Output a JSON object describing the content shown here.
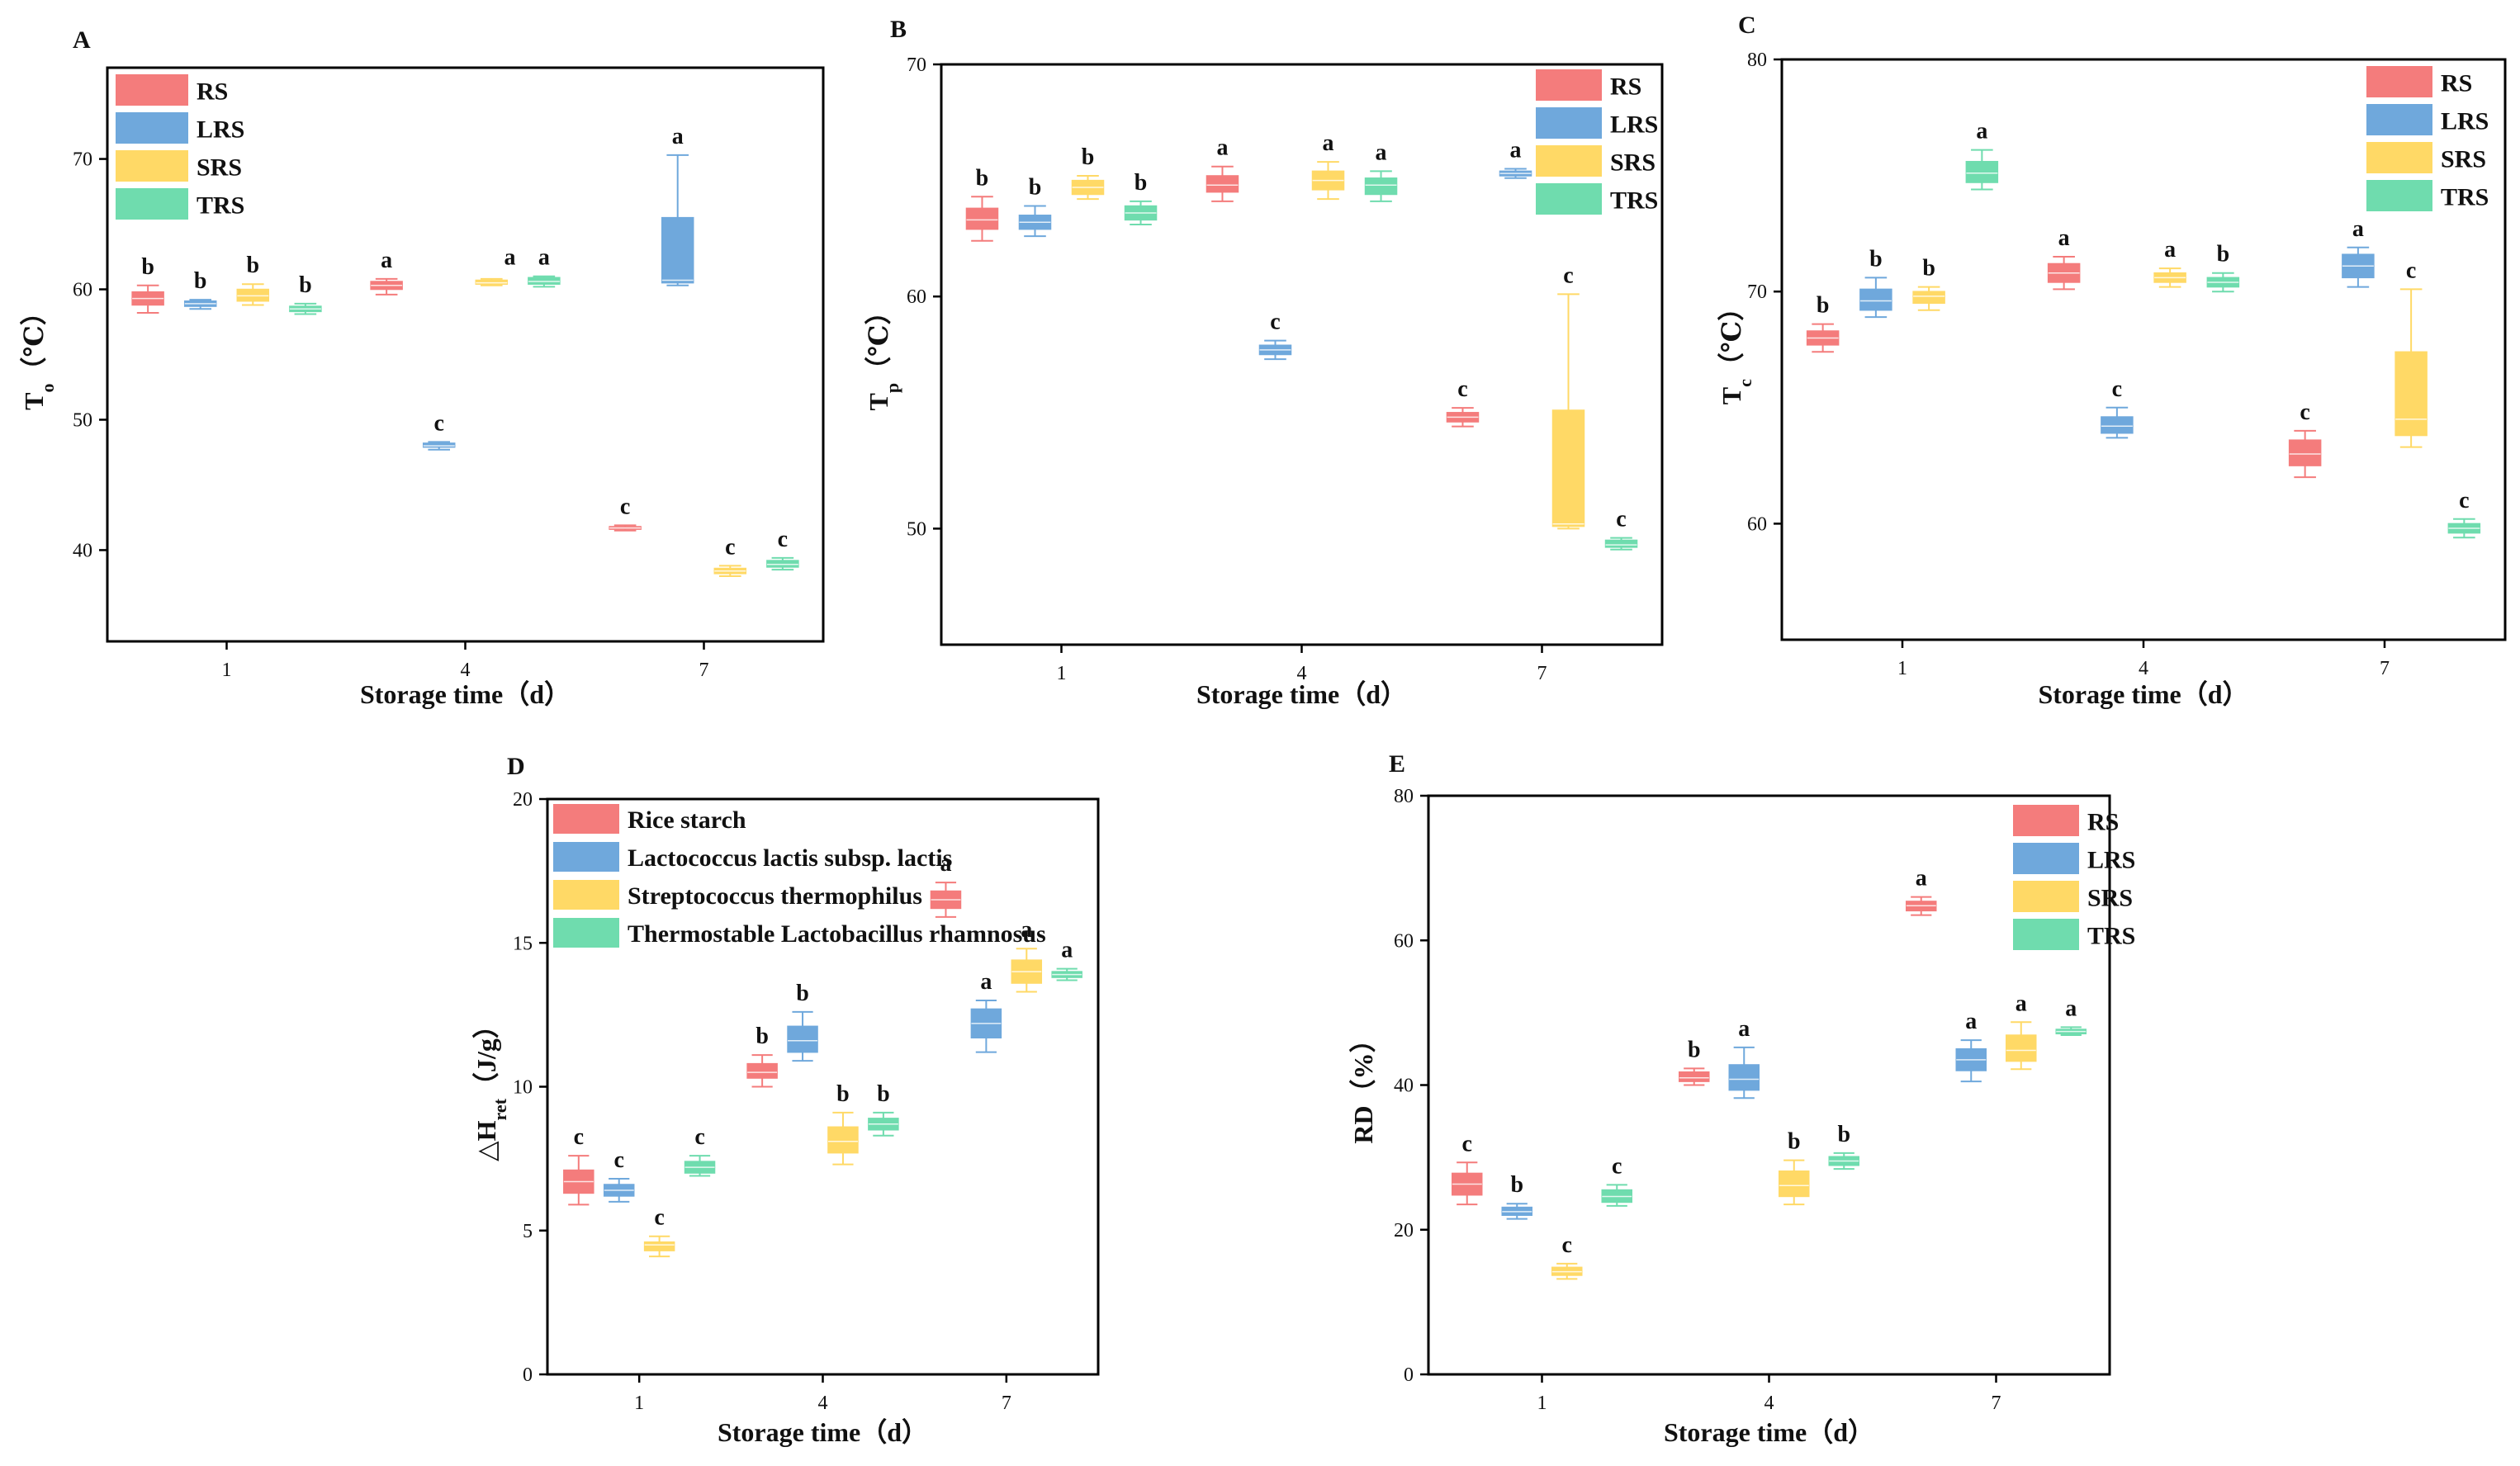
{
  "colors": {
    "RS": "#f47c7c",
    "LRS": "#6fa8dc",
    "SRS": "#ffd966",
    "TRS": "#6fdcae"
  },
  "chart_data": [
    {
      "type": "box",
      "panel": "A",
      "title": "",
      "xlabel": "Storage time（d）",
      "ylabel_main": "T",
      "ylabel_sub": "o",
      "ylabel_unit": "（℃）",
      "ylim": [
        33,
        77
      ],
      "yticks": [
        "40",
        "50",
        "60",
        "70"
      ],
      "ytick_values": [
        40,
        50,
        60,
        70
      ],
      "categories": [
        "1",
        "4",
        "7"
      ],
      "legend_entries": [
        {
          "key": "RS",
          "label": "RS"
        },
        {
          "key": "LRS",
          "label": "LRS"
        },
        {
          "key": "SRS",
          "label": "SRS"
        },
        {
          "key": "TRS",
          "label": "TRS"
        }
      ],
      "series": [
        {
          "name": "RS",
          "color_key": "RS",
          "boxes": [
            {
              "min": 58.2,
              "q1": 58.8,
              "median": 59.3,
              "q3": 59.8,
              "max": 60.3,
              "letter": "b"
            },
            {
              "min": 59.6,
              "q1": 60.0,
              "median": 60.3,
              "q3": 60.6,
              "max": 60.8,
              "letter": "a"
            },
            {
              "min": 41.5,
              "q1": 41.6,
              "median": 41.7,
              "q3": 41.8,
              "max": 41.9,
              "letter": "c"
            }
          ]
        },
        {
          "name": "LRS",
          "color_key": "LRS",
          "boxes": [
            {
              "min": 58.5,
              "q1": 58.7,
              "median": 58.9,
              "q3": 59.1,
              "max": 59.2,
              "letter": "b"
            },
            {
              "min": 47.7,
              "q1": 47.9,
              "median": 48.0,
              "q3": 48.2,
              "max": 48.3,
              "letter": "c"
            },
            {
              "min": 60.3,
              "q1": 60.5,
              "median": 60.7,
              "q3": 65.5,
              "max": 70.3,
              "letter": "a"
            }
          ]
        },
        {
          "name": "SRS",
          "color_key": "SRS",
          "boxes": [
            {
              "min": 58.8,
              "q1": 59.1,
              "median": 59.5,
              "q3": 60.0,
              "max": 60.4,
              "letter": "b"
            },
            {
              "min": 60.3,
              "q1": 60.4,
              "median": 60.5,
              "q3": 60.7,
              "max": 60.8,
              "letter": null
            },
            {
              "min": 38.0,
              "q1": 38.2,
              "median": 38.4,
              "q3": 38.6,
              "max": 38.8,
              "letter": "c"
            }
          ]
        },
        {
          "name": "TRS",
          "color_key": "TRS",
          "boxes": [
            {
              "min": 58.1,
              "q1": 58.3,
              "median": 58.5,
              "q3": 58.7,
              "max": 58.9,
              "letter": "b"
            },
            {
              "min": 60.2,
              "q1": 60.4,
              "median": 60.6,
              "q3": 60.9,
              "max": 61.0,
              "letter": "a"
            },
            {
              "min": 38.5,
              "q1": 38.7,
              "median": 38.9,
              "q3": 39.2,
              "max": 39.4,
              "letter": "c"
            }
          ]
        }
      ],
      "extra_labels": [
        {
          "category": 1,
          "series": "LRS",
          "offset": 0.33,
          "y": 61.0,
          "text": "a"
        }
      ]
    },
    {
      "type": "box",
      "panel": "B",
      "title": "",
      "xlabel": "Storage time（d）",
      "ylabel_main": "T",
      "ylabel_sub": "p",
      "ylabel_unit": "（℃）",
      "ylim": [
        45,
        70
      ],
      "yticks": [
        "50",
        "60",
        "70"
      ],
      "ytick_values": [
        50,
        60,
        70
      ],
      "categories": [
        "1",
        "4",
        "7"
      ],
      "legend_entries": [
        {
          "key": "RS",
          "label": "RS"
        },
        {
          "key": "LRS",
          "label": "LRS"
        },
        {
          "key": "SRS",
          "label": "SRS"
        },
        {
          "key": "TRS",
          "label": "TRS"
        }
      ],
      "series": [
        {
          "name": "RS",
          "color_key": "RS",
          "boxes": [
            {
              "min": 62.4,
              "q1": 62.9,
              "median": 63.3,
              "q3": 63.8,
              "max": 64.3,
              "letter": "b"
            },
            {
              "min": 64.1,
              "q1": 64.5,
              "median": 64.8,
              "q3": 65.2,
              "max": 65.6,
              "letter": "a"
            },
            {
              "min": 54.4,
              "q1": 54.6,
              "median": 54.8,
              "q3": 55.0,
              "max": 55.2,
              "letter": "c"
            }
          ]
        },
        {
          "name": "LRS",
          "color_key": "LRS",
          "boxes": [
            {
              "min": 62.6,
              "q1": 62.9,
              "median": 63.2,
              "q3": 63.5,
              "max": 63.9,
              "letter": "b"
            },
            {
              "min": 57.3,
              "q1": 57.5,
              "median": 57.7,
              "q3": 57.9,
              "max": 58.1,
              "letter": "c"
            },
            {
              "min": 65.1,
              "q1": 65.2,
              "median": 65.3,
              "q3": 65.4,
              "max": 65.5,
              "letter": "a"
            }
          ]
        },
        {
          "name": "SRS",
          "color_key": "SRS",
          "boxes": [
            {
              "min": 64.2,
              "q1": 64.4,
              "median": 64.7,
              "q3": 65.0,
              "max": 65.2,
              "letter": "b"
            },
            {
              "min": 64.2,
              "q1": 64.6,
              "median": 65.0,
              "q3": 65.4,
              "max": 65.8,
              "letter": "a"
            },
            {
              "min": 50.0,
              "q1": 50.1,
              "median": 50.2,
              "q3": 55.1,
              "max": 60.1,
              "letter": "c"
            }
          ]
        },
        {
          "name": "TRS",
          "color_key": "TRS",
          "boxes": [
            {
              "min": 63.1,
              "q1": 63.3,
              "median": 63.6,
              "q3": 63.9,
              "max": 64.1,
              "letter": "b"
            },
            {
              "min": 64.1,
              "q1": 64.4,
              "median": 64.8,
              "q3": 65.1,
              "max": 65.4,
              "letter": "a"
            },
            {
              "min": 49.1,
              "q1": 49.2,
              "median": 49.3,
              "q3": 49.5,
              "max": 49.6,
              "letter": "c"
            }
          ]
        }
      ],
      "extra_labels": []
    },
    {
      "type": "box",
      "panel": "C",
      "title": "",
      "xlabel": "Storage time（d）",
      "ylabel_main": "T",
      "ylabel_sub": "c",
      "ylabel_unit": "（℃）",
      "ylim": [
        55,
        80
      ],
      "yticks": [
        "60",
        "70",
        "80"
      ],
      "ytick_values": [
        60,
        70,
        80
      ],
      "categories": [
        "1",
        "4",
        "7"
      ],
      "legend_entries": [
        {
          "key": "RS",
          "label": "RS"
        },
        {
          "key": "LRS",
          "label": "LRS"
        },
        {
          "key": "SRS",
          "label": "SRS"
        },
        {
          "key": "TRS",
          "label": "TRS"
        }
      ],
      "series": [
        {
          "name": "RS",
          "color_key": "RS",
          "boxes": [
            {
              "min": 67.4,
              "q1": 67.7,
              "median": 68.0,
              "q3": 68.3,
              "max": 68.6,
              "letter": "b"
            },
            {
              "min": 70.1,
              "q1": 70.4,
              "median": 70.8,
              "q3": 71.2,
              "max": 71.5,
              "letter": "a"
            },
            {
              "min": 62.0,
              "q1": 62.5,
              "median": 63.0,
              "q3": 63.6,
              "max": 64.0,
              "letter": "c"
            }
          ]
        },
        {
          "name": "LRS",
          "color_key": "LRS",
          "boxes": [
            {
              "min": 68.9,
              "q1": 69.2,
              "median": 69.6,
              "q3": 70.1,
              "max": 70.6,
              "letter": "b"
            },
            {
              "min": 63.7,
              "q1": 63.9,
              "median": 64.2,
              "q3": 64.6,
              "max": 65.0,
              "letter": "c"
            },
            {
              "min": 70.2,
              "q1": 70.6,
              "median": 71.1,
              "q3": 71.6,
              "max": 71.9,
              "letter": "a"
            }
          ]
        },
        {
          "name": "SRS",
          "color_key": "SRS",
          "boxes": [
            {
              "min": 69.2,
              "q1": 69.5,
              "median": 69.8,
              "q3": 70.0,
              "max": 70.2,
              "letter": "b"
            },
            {
              "min": 70.2,
              "q1": 70.4,
              "median": 70.6,
              "q3": 70.8,
              "max": 71.0,
              "letter": "a"
            },
            {
              "min": 63.3,
              "q1": 63.8,
              "median": 64.5,
              "q3": 67.4,
              "max": 70.1,
              "letter": "c"
            }
          ]
        },
        {
          "name": "TRS",
          "color_key": "TRS",
          "boxes": [
            {
              "min": 74.4,
              "q1": 74.7,
              "median": 75.1,
              "q3": 75.6,
              "max": 76.1,
              "letter": "a"
            },
            {
              "min": 70.0,
              "q1": 70.2,
              "median": 70.4,
              "q3": 70.6,
              "max": 70.8,
              "letter": "b"
            },
            {
              "min": 59.4,
              "q1": 59.6,
              "median": 59.8,
              "q3": 60.0,
              "max": 60.2,
              "letter": "c"
            }
          ]
        }
      ],
      "extra_labels": []
    },
    {
      "type": "box",
      "panel": "D",
      "title": "",
      "xlabel": "Storage time（d）",
      "ylabel_main": "△H",
      "ylabel_sub": "ret",
      "ylabel_unit": "（J/g）",
      "ylim": [
        0,
        20
      ],
      "yticks": [
        "0",
        "5",
        "10",
        "15",
        "20"
      ],
      "ytick_values": [
        0,
        5,
        10,
        15,
        20
      ],
      "categories": [
        "1",
        "4",
        "7"
      ],
      "legend_entries": [
        {
          "key": "RS",
          "label": "Rice starch"
        },
        {
          "key": "LRS",
          "label": "Lactococcus lactis subsp. lactis"
        },
        {
          "key": "SRS",
          "label": "Streptococcus thermophilus"
        },
        {
          "key": "TRS",
          "label": "Thermostable Lactobacillus rhamnosus"
        }
      ],
      "series": [
        {
          "name": "Rice starch",
          "color_key": "RS",
          "boxes": [
            {
              "min": 5.9,
              "q1": 6.3,
              "median": 6.7,
              "q3": 7.1,
              "max": 7.6,
              "letter": "c"
            },
            {
              "min": 10.0,
              "q1": 10.3,
              "median": 10.5,
              "q3": 10.8,
              "max": 11.1,
              "letter": "b"
            },
            {
              "min": 15.9,
              "q1": 16.2,
              "median": 16.5,
              "q3": 16.8,
              "max": 17.1,
              "letter": "a"
            }
          ]
        },
        {
          "name": "Lactococcus lactis subsp. lactis",
          "color_key": "LRS",
          "boxes": [
            {
              "min": 6.0,
              "q1": 6.2,
              "median": 6.4,
              "q3": 6.6,
              "max": 6.8,
              "letter": "c"
            },
            {
              "min": 10.9,
              "q1": 11.2,
              "median": 11.6,
              "q3": 12.1,
              "max": 12.6,
              "letter": "b"
            },
            {
              "min": 11.2,
              "q1": 11.7,
              "median": 12.2,
              "q3": 12.7,
              "max": 13.0,
              "letter": "a"
            }
          ]
        },
        {
          "name": "Streptococcus thermophilus",
          "color_key": "SRS",
          "boxes": [
            {
              "min": 4.1,
              "q1": 4.3,
              "median": 4.5,
              "q3": 4.6,
              "max": 4.8,
              "letter": "c"
            },
            {
              "min": 7.3,
              "q1": 7.7,
              "median": 8.1,
              "q3": 8.6,
              "max": 9.1,
              "letter": "b"
            },
            {
              "min": 13.3,
              "q1": 13.6,
              "median": 14.0,
              "q3": 14.4,
              "max": 14.8,
              "letter": "a"
            }
          ]
        },
        {
          "name": "Thermostable Lactobacillus rhamnosus",
          "color_key": "TRS",
          "boxes": [
            {
              "min": 6.9,
              "q1": 7.0,
              "median": 7.2,
              "q3": 7.4,
              "max": 7.6,
              "letter": "c"
            },
            {
              "min": 8.3,
              "q1": 8.5,
              "median": 8.7,
              "q3": 8.9,
              "max": 9.1,
              "letter": "b"
            },
            {
              "min": 13.7,
              "q1": 13.8,
              "median": 13.9,
              "q3": 14.0,
              "max": 14.1,
              "letter": "a"
            }
          ]
        }
      ],
      "extra_labels": []
    },
    {
      "type": "box",
      "panel": "E",
      "title": "",
      "xlabel": "Storage time（d）",
      "ylabel_main": "RD",
      "ylabel_sub": "",
      "ylabel_unit": "（%）",
      "ylim": [
        0,
        80
      ],
      "yticks": [
        "0",
        "20",
        "40",
        "60",
        "80"
      ],
      "ytick_values": [
        0,
        20,
        40,
        60,
        80
      ],
      "categories": [
        "1",
        "4",
        "7"
      ],
      "legend_entries": [
        {
          "key": "RS",
          "label": "RS"
        },
        {
          "key": "LRS",
          "label": "LRS"
        },
        {
          "key": "SRS",
          "label": "SRS"
        },
        {
          "key": "TRS",
          "label": "TRS"
        }
      ],
      "series": [
        {
          "name": "RS",
          "color_key": "RS",
          "boxes": [
            {
              "min": 23.5,
              "q1": 24.8,
              "median": 26.3,
              "q3": 27.8,
              "max": 29.3,
              "letter": "c"
            },
            {
              "min": 40.0,
              "q1": 40.5,
              "median": 41.0,
              "q3": 41.8,
              "max": 42.3,
              "letter": "b"
            },
            {
              "min": 63.5,
              "q1": 64.1,
              "median": 64.8,
              "q3": 65.4,
              "max": 66.0,
              "letter": "a"
            }
          ]
        },
        {
          "name": "LRS",
          "color_key": "LRS",
          "boxes": [
            {
              "min": 21.5,
              "q1": 22.0,
              "median": 22.5,
              "q3": 23.1,
              "max": 23.6,
              "letter": "b"
            },
            {
              "min": 38.2,
              "q1": 39.3,
              "median": 40.8,
              "q3": 42.8,
              "max": 45.2,
              "letter": "a"
            },
            {
              "min": 40.5,
              "q1": 42.0,
              "median": 43.5,
              "q3": 45.0,
              "max": 46.2,
              "letter": "a"
            }
          ]
        },
        {
          "name": "SRS",
          "color_key": "SRS",
          "boxes": [
            {
              "min": 13.2,
              "q1": 13.7,
              "median": 14.2,
              "q3": 14.8,
              "max": 15.3,
              "letter": "c"
            },
            {
              "min": 23.5,
              "q1": 24.6,
              "median": 26.1,
              "q3": 28.1,
              "max": 29.6,
              "letter": "b"
            },
            {
              "min": 42.2,
              "q1": 43.3,
              "median": 44.8,
              "q3": 46.9,
              "max": 48.7,
              "letter": "a"
            }
          ]
        },
        {
          "name": "TRS",
          "color_key": "TRS",
          "boxes": [
            {
              "min": 23.3,
              "q1": 23.8,
              "median": 24.6,
              "q3": 25.5,
              "max": 26.2,
              "letter": "c"
            },
            {
              "min": 28.4,
              "q1": 28.9,
              "median": 29.5,
              "q3": 30.1,
              "max": 30.6,
              "letter": "b"
            },
            {
              "min": 46.9,
              "q1": 47.1,
              "median": 47.4,
              "q3": 47.7,
              "max": 48.0,
              "letter": "a"
            }
          ]
        }
      ],
      "extra_labels": []
    }
  ]
}
